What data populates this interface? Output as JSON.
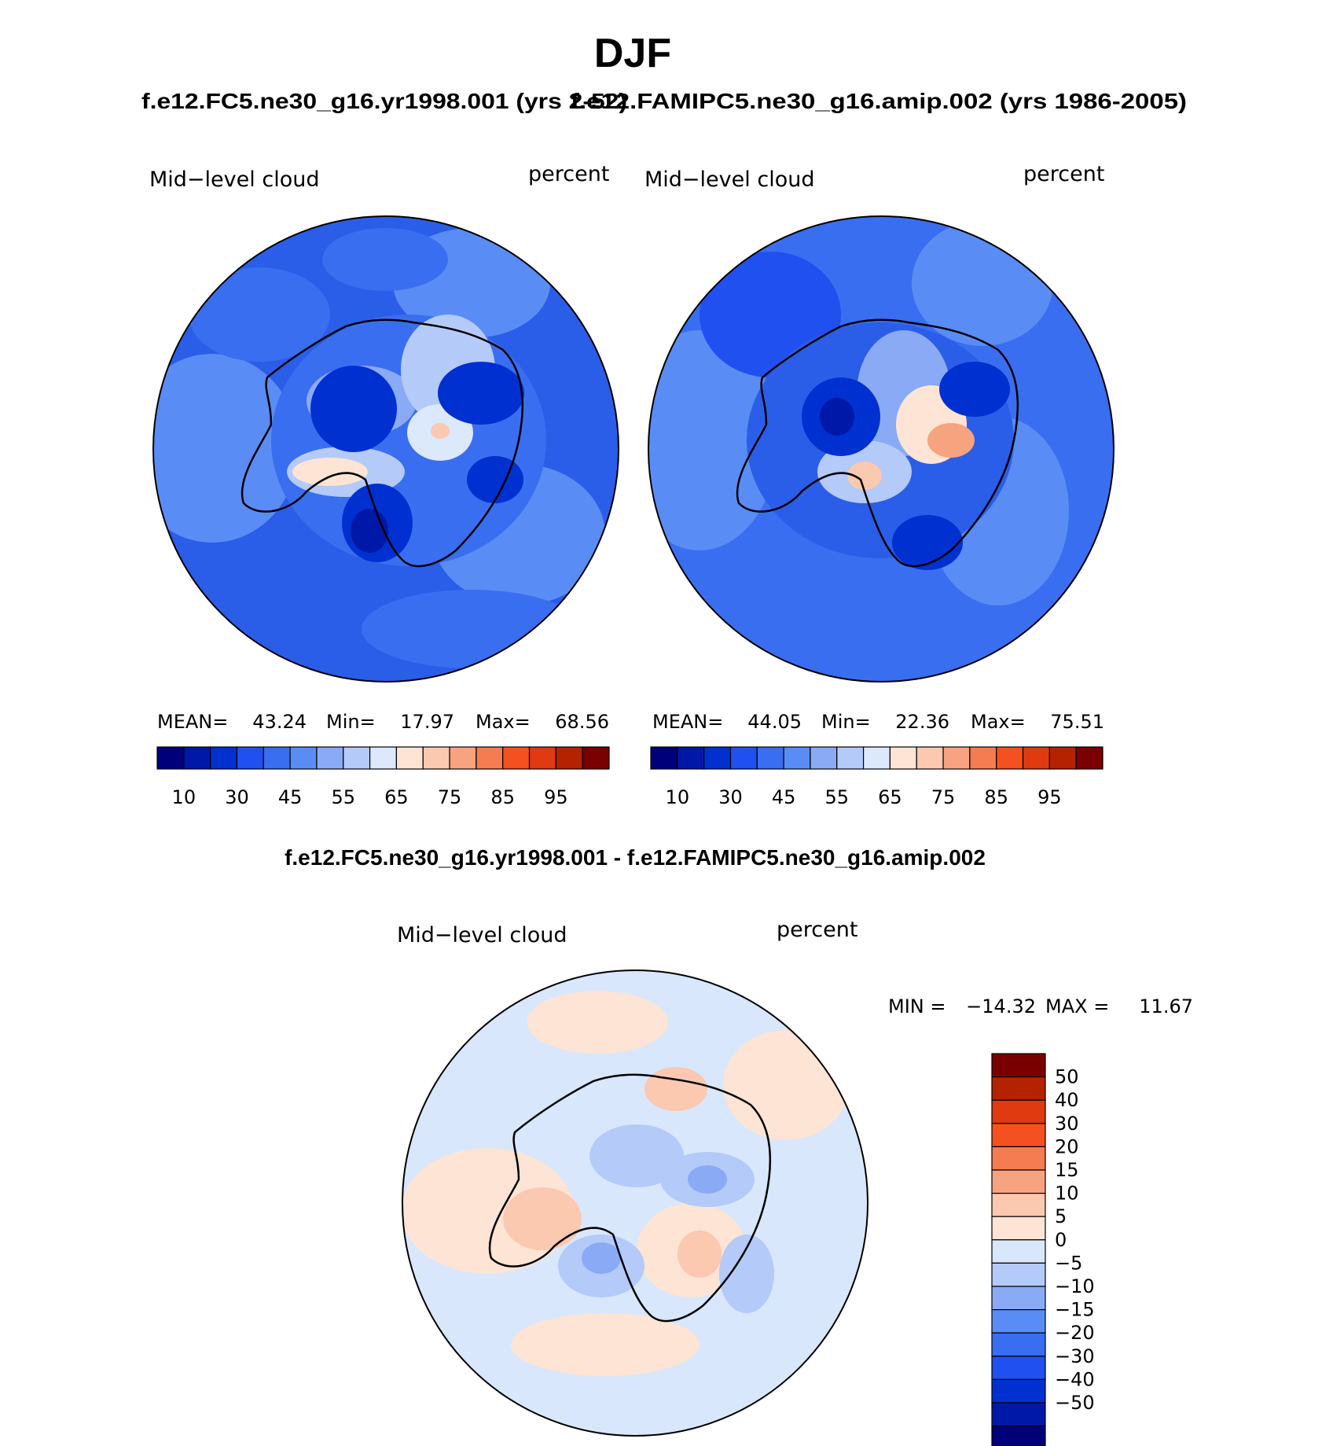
{
  "figure": {
    "title": "DJF",
    "panel_title_left": "f.e12.FC5.ne30_g16.yr1998.001 (yrs 2-52)",
    "panel_title_right": "f.e12.FAMIPC5.ne30_g16.amip.002 (yrs 1986-2005)",
    "diff_title": "f.e12.FC5.ne30_g16.yr1998.001 - f.e12.FAMIPC5.ne30_g16.amip.002"
  },
  "colors": {
    "mean_scale": [
      "#00007a",
      "#0018a8",
      "#0030d0",
      "#2050f0",
      "#3a6ef0",
      "#5a8cf5",
      "#8aaaf5",
      "#b4caf8",
      "#dce8fb",
      "#fde4d4",
      "#fbc8b0",
      "#f7a380",
      "#f57c50",
      "#f5501f",
      "#e03a10",
      "#b52200",
      "#7a0000"
    ],
    "diff_scale": [
      "#00007a",
      "#0018a8",
      "#0030d0",
      "#2050f0",
      "#3a6ef0",
      "#5a8cf5",
      "#8aaaf5",
      "#b4caf8",
      "#d8e7fb",
      "#fde4d4",
      "#fbc8b0",
      "#f7a380",
      "#f57c50",
      "#f5501f",
      "#e03a10",
      "#b52200",
      "#7a0000"
    ]
  },
  "chart_data": [
    {
      "type": "heatmap",
      "panel": "model",
      "title": "Mid−level cloud",
      "units": "percent",
      "projection": "south-polar-stereographic",
      "stats": {
        "mean_label": "MEAN=",
        "mean": "43.24",
        "min_label": "Min=",
        "min": "17.97",
        "max_label": "Max=",
        "max": "68.56"
      },
      "colorbar": {
        "orientation": "horizontal",
        "levels": [
          "10",
          "30",
          "45",
          "55",
          "65",
          "75",
          "85",
          "95"
        ]
      }
    },
    {
      "type": "heatmap",
      "panel": "control",
      "title": "Mid−level cloud",
      "units": "percent",
      "projection": "south-polar-stereographic",
      "stats": {
        "mean_label": "MEAN=",
        "mean": "44.05",
        "min_label": "Min=",
        "min": "22.36",
        "max_label": "Max=",
        "max": "75.51"
      },
      "colorbar": {
        "orientation": "horizontal",
        "levels": [
          "10",
          "30",
          "45",
          "55",
          "65",
          "75",
          "85",
          "95"
        ]
      }
    },
    {
      "type": "heatmap",
      "panel": "difference",
      "title": "Mid−level cloud",
      "units": "percent",
      "projection": "south-polar-stereographic",
      "stats": {
        "min_label": "MIN =",
        "min": "−14.32",
        "max_label": "MAX =",
        "max": "11.67"
      },
      "colorbar": {
        "orientation": "vertical",
        "levels": [
          "50",
          "40",
          "30",
          "20",
          "15",
          "10",
          "5",
          "0",
          "−5",
          "−10",
          "−15",
          "−20",
          "−30",
          "−40",
          "−50"
        ]
      }
    }
  ]
}
